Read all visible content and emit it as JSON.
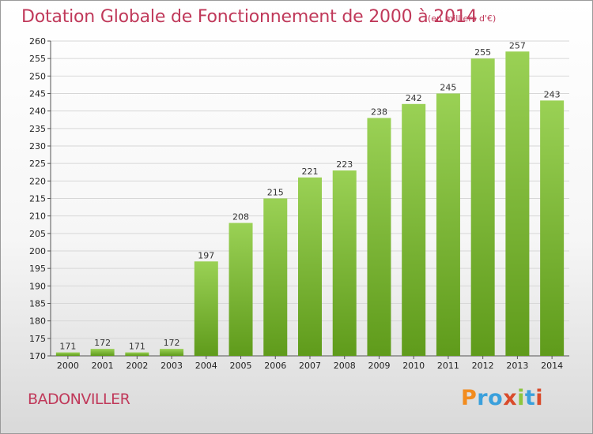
{
  "header": {
    "title": "Dotation Globale de Fonctionnement de 2000 à 2014",
    "subtitle": "(en milliers d'€)"
  },
  "footer": {
    "place": "BADONVILLER",
    "logo_text": "Proxiti",
    "logo_colors": [
      "#f28c1e",
      "#3aa0dc",
      "#3aa0dc",
      "#d94b2b",
      "#8cc63e",
      "#3aa0dc",
      "#d94b2b"
    ]
  },
  "colors": {
    "bar_top": "#9ad155",
    "bar_bottom": "#5f9b1b",
    "grid": "#d7d7d7",
    "axis_text": "#222222",
    "title": "#c0395a"
  },
  "chart_data": {
    "type": "bar",
    "categories": [
      "2000",
      "2001",
      "2002",
      "2003",
      "2004",
      "2005",
      "2006",
      "2007",
      "2008",
      "2009",
      "2010",
      "2011",
      "2012",
      "2013",
      "2014"
    ],
    "values": [
      171,
      172,
      171,
      172,
      197,
      208,
      215,
      221,
      223,
      238,
      242,
      245,
      255,
      257,
      243
    ],
    "ylim": [
      170,
      260
    ],
    "yticks": [
      170,
      175,
      180,
      185,
      190,
      195,
      200,
      205,
      210,
      215,
      220,
      225,
      230,
      235,
      240,
      245,
      250,
      255,
      260
    ],
    "grid": true,
    "legend": "none"
  }
}
